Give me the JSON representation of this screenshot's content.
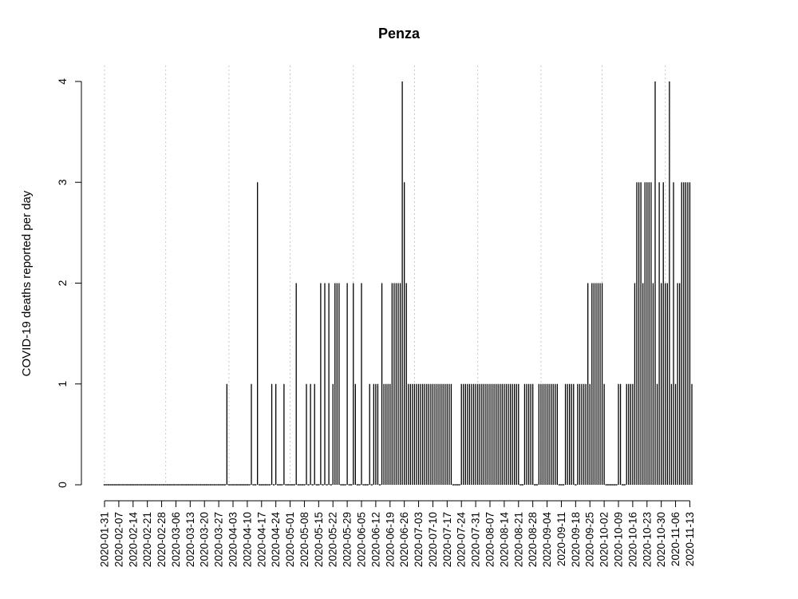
{
  "chart_data": {
    "type": "bar",
    "title": "Penza",
    "xlabel": "",
    "ylabel": "COVID-19 deaths reported per day",
    "ylim": [
      0,
      4
    ],
    "yticks": [
      0,
      1,
      2,
      3,
      4
    ],
    "x_start": "2020-01-31",
    "x_end": "2020-11-14",
    "xtick_labels": [
      "2020-01-31",
      "2020-02-07",
      "2020-02-14",
      "2020-02-21",
      "2020-02-28",
      "2020-03-06",
      "2020-03-13",
      "2020-03-20",
      "2020-03-27",
      "2020-04-03",
      "2020-04-10",
      "2020-04-17",
      "2020-04-24",
      "2020-05-01",
      "2020-05-08",
      "2020-05-15",
      "2020-05-22",
      "2020-05-29",
      "2020-06-05",
      "2020-06-12",
      "2020-06-19",
      "2020-06-26",
      "2020-07-03",
      "2020-07-10",
      "2020-07-17",
      "2020-07-24",
      "2020-07-31",
      "2020-08-07",
      "2020-08-14",
      "2020-08-21",
      "2020-08-28",
      "2020-09-04",
      "2020-09-11",
      "2020-09-18",
      "2020-09-25",
      "2020-10-02",
      "2020-10-09",
      "2020-10-16",
      "2020-10-23",
      "2020-10-30",
      "2020-11-06",
      "2020-11-13"
    ],
    "vertical_gridlines": [
      "2020-01-31",
      "2020-03-01",
      "2020-04-01",
      "2020-05-01",
      "2020-06-01",
      "2020-07-01",
      "2020-08-01",
      "2020-09-01",
      "2020-10-01",
      "2020-11-01"
    ],
    "grid": "vertical dotted",
    "series": [
      {
        "values": [
          {
            "date": "2020-03-31",
            "deaths": 1
          },
          {
            "date": "2020-04-12",
            "deaths": 1
          },
          {
            "date": "2020-04-15",
            "deaths": 3
          },
          {
            "date": "2020-04-22",
            "deaths": 1
          },
          {
            "date": "2020-04-24",
            "deaths": 1
          },
          {
            "date": "2020-04-28",
            "deaths": 1
          },
          {
            "date": "2020-05-04",
            "deaths": 2
          },
          {
            "date": "2020-05-09",
            "deaths": 1
          },
          {
            "date": "2020-05-11",
            "deaths": 1
          },
          {
            "date": "2020-05-13",
            "deaths": 1
          },
          {
            "date": "2020-05-16",
            "deaths": 2
          },
          {
            "date": "2020-05-18",
            "deaths": 2
          },
          {
            "date": "2020-05-20",
            "deaths": 2
          },
          {
            "date": "2020-05-22",
            "deaths": 1
          },
          {
            "date": "2020-05-23",
            "deaths": 2
          },
          {
            "date": "2020-05-24",
            "deaths": 2
          },
          {
            "date": "2020-05-25",
            "deaths": 2
          },
          {
            "date": "2020-05-29",
            "deaths": 2
          },
          {
            "date": "2020-06-01",
            "deaths": 2
          },
          {
            "date": "2020-06-02",
            "deaths": 1
          },
          {
            "date": "2020-06-05",
            "deaths": 2
          },
          {
            "date": "2020-06-09",
            "deaths": 1
          },
          {
            "date": "2020-06-11",
            "deaths": 1
          },
          {
            "date": "2020-06-12",
            "deaths": 1
          },
          {
            "date": "2020-06-13",
            "deaths": 1
          },
          {
            "date": "2020-06-15",
            "deaths": 2
          },
          {
            "date": "2020-06-16",
            "deaths": 1
          },
          {
            "date": "2020-06-17",
            "deaths": 1
          },
          {
            "date": "2020-06-18",
            "deaths": 1
          },
          {
            "date": "2020-06-19",
            "deaths": 1
          },
          {
            "date": "2020-06-20",
            "deaths": 2
          },
          {
            "date": "2020-06-21",
            "deaths": 2
          },
          {
            "date": "2020-06-22",
            "deaths": 2
          },
          {
            "date": "2020-06-23",
            "deaths": 2
          },
          {
            "date": "2020-06-24",
            "deaths": 2
          },
          {
            "date": "2020-06-25",
            "deaths": 4
          },
          {
            "date": "2020-06-26",
            "deaths": 3
          },
          {
            "date": "2020-06-27",
            "deaths": 2
          },
          {
            "date": "2020-06-28",
            "deaths": 1
          },
          {
            "date": "2020-06-29",
            "deaths": 1
          },
          {
            "date": "2020-06-30",
            "deaths": 1
          },
          {
            "date": "2020-07-01",
            "deaths": 1
          },
          {
            "date": "2020-07-02",
            "deaths": 1
          },
          {
            "date": "2020-07-03",
            "deaths": 1
          },
          {
            "date": "2020-07-04",
            "deaths": 1
          },
          {
            "date": "2020-07-05",
            "deaths": 1
          },
          {
            "date": "2020-07-06",
            "deaths": 1
          },
          {
            "date": "2020-07-07",
            "deaths": 1
          },
          {
            "date": "2020-07-08",
            "deaths": 1
          },
          {
            "date": "2020-07-09",
            "deaths": 1
          },
          {
            "date": "2020-07-10",
            "deaths": 1
          },
          {
            "date": "2020-07-11",
            "deaths": 1
          },
          {
            "date": "2020-07-12",
            "deaths": 1
          },
          {
            "date": "2020-07-13",
            "deaths": 1
          },
          {
            "date": "2020-07-14",
            "deaths": 1
          },
          {
            "date": "2020-07-15",
            "deaths": 1
          },
          {
            "date": "2020-07-16",
            "deaths": 1
          },
          {
            "date": "2020-07-17",
            "deaths": 1
          },
          {
            "date": "2020-07-18",
            "deaths": 1
          },
          {
            "date": "2020-07-19",
            "deaths": 1
          },
          {
            "date": "2020-07-24",
            "deaths": 1
          },
          {
            "date": "2020-07-25",
            "deaths": 1
          },
          {
            "date": "2020-07-26",
            "deaths": 1
          },
          {
            "date": "2020-07-27",
            "deaths": 1
          },
          {
            "date": "2020-07-28",
            "deaths": 1
          },
          {
            "date": "2020-07-29",
            "deaths": 1
          },
          {
            "date": "2020-07-30",
            "deaths": 1
          },
          {
            "date": "2020-07-31",
            "deaths": 1
          },
          {
            "date": "2020-08-01",
            "deaths": 1
          },
          {
            "date": "2020-08-02",
            "deaths": 1
          },
          {
            "date": "2020-08-03",
            "deaths": 1
          },
          {
            "date": "2020-08-04",
            "deaths": 1
          },
          {
            "date": "2020-08-05",
            "deaths": 1
          },
          {
            "date": "2020-08-06",
            "deaths": 1
          },
          {
            "date": "2020-08-07",
            "deaths": 1
          },
          {
            "date": "2020-08-08",
            "deaths": 1
          },
          {
            "date": "2020-08-09",
            "deaths": 1
          },
          {
            "date": "2020-08-10",
            "deaths": 1
          },
          {
            "date": "2020-08-11",
            "deaths": 1
          },
          {
            "date": "2020-08-12",
            "deaths": 1
          },
          {
            "date": "2020-08-13",
            "deaths": 1
          },
          {
            "date": "2020-08-14",
            "deaths": 1
          },
          {
            "date": "2020-08-15",
            "deaths": 1
          },
          {
            "date": "2020-08-16",
            "deaths": 1
          },
          {
            "date": "2020-08-17",
            "deaths": 1
          },
          {
            "date": "2020-08-18",
            "deaths": 1
          },
          {
            "date": "2020-08-19",
            "deaths": 1
          },
          {
            "date": "2020-08-20",
            "deaths": 1
          },
          {
            "date": "2020-08-21",
            "deaths": 1
          },
          {
            "date": "2020-08-24",
            "deaths": 1
          },
          {
            "date": "2020-08-25",
            "deaths": 1
          },
          {
            "date": "2020-08-26",
            "deaths": 1
          },
          {
            "date": "2020-08-27",
            "deaths": 1
          },
          {
            "date": "2020-08-28",
            "deaths": 1
          },
          {
            "date": "2020-08-31",
            "deaths": 1
          },
          {
            "date": "2020-09-01",
            "deaths": 1
          },
          {
            "date": "2020-09-02",
            "deaths": 1
          },
          {
            "date": "2020-09-03",
            "deaths": 1
          },
          {
            "date": "2020-09-04",
            "deaths": 1
          },
          {
            "date": "2020-09-05",
            "deaths": 1
          },
          {
            "date": "2020-09-06",
            "deaths": 1
          },
          {
            "date": "2020-09-07",
            "deaths": 1
          },
          {
            "date": "2020-09-08",
            "deaths": 1
          },
          {
            "date": "2020-09-09",
            "deaths": 1
          },
          {
            "date": "2020-09-13",
            "deaths": 1
          },
          {
            "date": "2020-09-14",
            "deaths": 1
          },
          {
            "date": "2020-09-15",
            "deaths": 1
          },
          {
            "date": "2020-09-16",
            "deaths": 1
          },
          {
            "date": "2020-09-17",
            "deaths": 1
          },
          {
            "date": "2020-09-19",
            "deaths": 1
          },
          {
            "date": "2020-09-20",
            "deaths": 1
          },
          {
            "date": "2020-09-21",
            "deaths": 1
          },
          {
            "date": "2020-09-22",
            "deaths": 1
          },
          {
            "date": "2020-09-23",
            "deaths": 1
          },
          {
            "date": "2020-09-24",
            "deaths": 2
          },
          {
            "date": "2020-09-25",
            "deaths": 1
          },
          {
            "date": "2020-09-26",
            "deaths": 2
          },
          {
            "date": "2020-09-27",
            "deaths": 2
          },
          {
            "date": "2020-09-28",
            "deaths": 2
          },
          {
            "date": "2020-09-29",
            "deaths": 2
          },
          {
            "date": "2020-09-30",
            "deaths": 2
          },
          {
            "date": "2020-10-01",
            "deaths": 2
          },
          {
            "date": "2020-10-02",
            "deaths": 1
          },
          {
            "date": "2020-10-09",
            "deaths": 1
          },
          {
            "date": "2020-10-10",
            "deaths": 1
          },
          {
            "date": "2020-10-13",
            "deaths": 1
          },
          {
            "date": "2020-10-14",
            "deaths": 1
          },
          {
            "date": "2020-10-15",
            "deaths": 1
          },
          {
            "date": "2020-10-16",
            "deaths": 1
          },
          {
            "date": "2020-10-17",
            "deaths": 2
          },
          {
            "date": "2020-10-18",
            "deaths": 3
          },
          {
            "date": "2020-10-19",
            "deaths": 3
          },
          {
            "date": "2020-10-20",
            "deaths": 3
          },
          {
            "date": "2020-10-21",
            "deaths": 2
          },
          {
            "date": "2020-10-22",
            "deaths": 3
          },
          {
            "date": "2020-10-23",
            "deaths": 3
          },
          {
            "date": "2020-10-24",
            "deaths": 3
          },
          {
            "date": "2020-10-25",
            "deaths": 3
          },
          {
            "date": "2020-10-26",
            "deaths": 2
          },
          {
            "date": "2020-10-27",
            "deaths": 4
          },
          {
            "date": "2020-10-28",
            "deaths": 1
          },
          {
            "date": "2020-10-29",
            "deaths": 3
          },
          {
            "date": "2020-10-30",
            "deaths": 2
          },
          {
            "date": "2020-10-31",
            "deaths": 3
          },
          {
            "date": "2020-11-01",
            "deaths": 2
          },
          {
            "date": "2020-11-02",
            "deaths": 2
          },
          {
            "date": "2020-11-03",
            "deaths": 4
          },
          {
            "date": "2020-11-04",
            "deaths": 1
          },
          {
            "date": "2020-11-05",
            "deaths": 3
          },
          {
            "date": "2020-11-06",
            "deaths": 1
          },
          {
            "date": "2020-11-07",
            "deaths": 2
          },
          {
            "date": "2020-11-08",
            "deaths": 2
          },
          {
            "date": "2020-11-09",
            "deaths": 3
          },
          {
            "date": "2020-11-10",
            "deaths": 3
          },
          {
            "date": "2020-11-11",
            "deaths": 3
          },
          {
            "date": "2020-11-12",
            "deaths": 3
          },
          {
            "date": "2020-11-13",
            "deaths": 3
          },
          {
            "date": "2020-11-14",
            "deaths": 1
          }
        ]
      }
    ]
  }
}
